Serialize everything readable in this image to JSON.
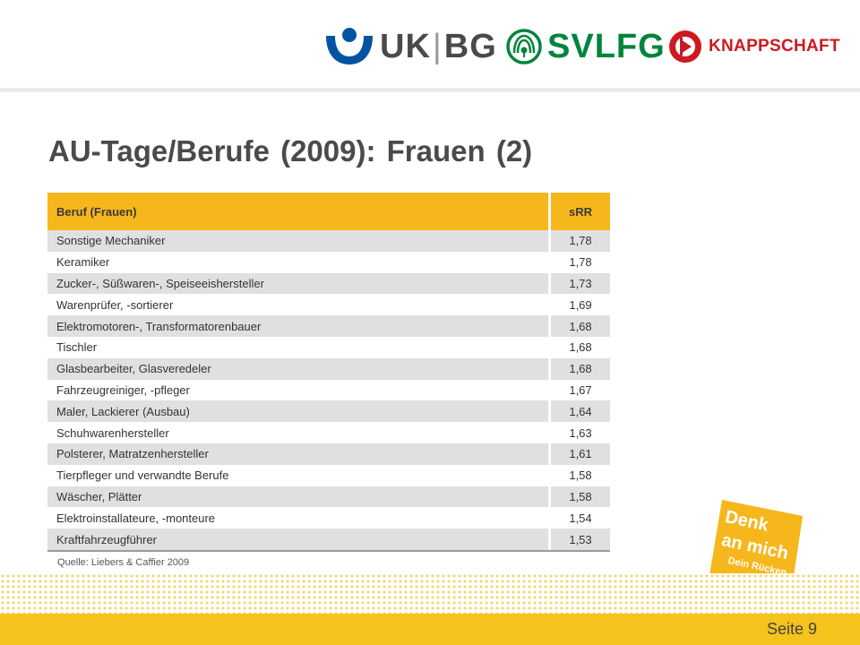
{
  "header": {
    "logos": [
      {
        "text_left": "UK",
        "text_sep": "|",
        "text_right": "BG",
        "icon": "ukbg-figure-icon"
      },
      {
        "text": "SVLFG",
        "icon": "svlfg-emblem-icon"
      },
      {
        "text": "KNAPPSCHAFT",
        "icon": "knappschaft-emblem-icon"
      }
    ]
  },
  "title": "AU-Tage/Berufe (2009): Frauen (2)",
  "table": {
    "headers": {
      "occupation": "Beruf (Frauen)",
      "value": "sRR"
    },
    "rows": [
      {
        "occupation": "Sonstige Mechaniker",
        "value": "1,78"
      },
      {
        "occupation": "Keramiker",
        "value": "1,78"
      },
      {
        "occupation": "Zucker-, Süßwaren-, Speiseeishersteller",
        "value": "1,73"
      },
      {
        "occupation": "Warenprüfer, -sortierer",
        "value": "1,69"
      },
      {
        "occupation": "Elektromotoren-, Transformatorenbauer",
        "value": "1,68"
      },
      {
        "occupation": "Tischler",
        "value": "1,68"
      },
      {
        "occupation": "Glasbearbeiter, Glasveredeler",
        "value": "1,68"
      },
      {
        "occupation": "Fahrzeugreiniger, -pfleger",
        "value": "1,67"
      },
      {
        "occupation": "Maler, Lackierer (Ausbau)",
        "value": "1,64"
      },
      {
        "occupation": "Schuhwarenhersteller",
        "value": "1,63"
      },
      {
        "occupation": "Polsterer, Matratzenhersteller",
        "value": "1,61"
      },
      {
        "occupation": "Tierpfleger und verwandte Berufe",
        "value": "1,58"
      },
      {
        "occupation": "Wäscher, Plätter",
        "value": "1,58"
      },
      {
        "occupation": "Elektroinstallateure, -monteure",
        "value": "1,54"
      },
      {
        "occupation": "Kraftfahrzeugführer",
        "value": "1,53"
      }
    ]
  },
  "source": "Quelle: Liebers & Caffier 2009",
  "sticker": {
    "line1": "Denk",
    "line2": "an mich",
    "line3": "Dein Rücken"
  },
  "footer": {
    "page": "Seite 9"
  },
  "colors": {
    "accent": "#f6b71c",
    "footer": "#f6c21c",
    "ukbg_blue": "#0054a0",
    "svlfg_green": "#00843d",
    "knappschaft_red": "#cc1a20"
  }
}
